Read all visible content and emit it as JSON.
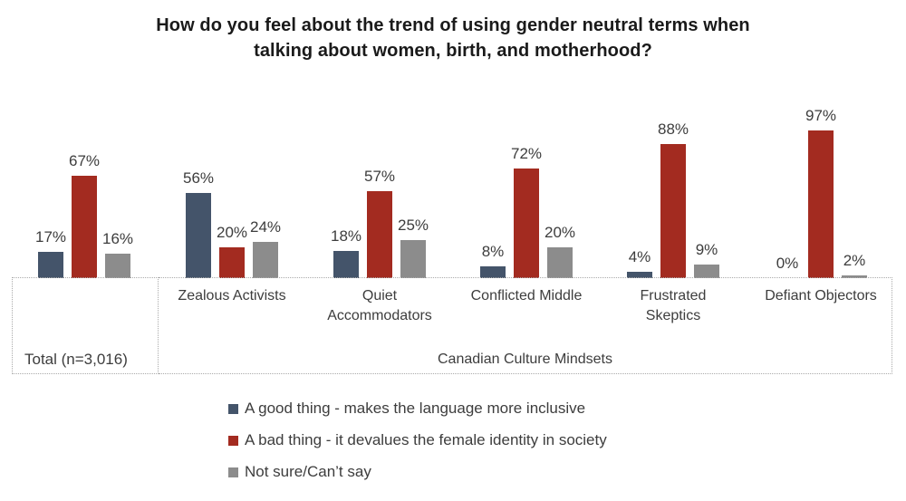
{
  "header": {
    "title_lines": [
      "How do you feel about the trend of using gender neutral terms when",
      "talking about women, birth, and motherhood?"
    ]
  },
  "axis": {
    "total_label": "Total (n=3,016)",
    "mindset_labels": [
      "Zealous Activists",
      "Quiet Accommodators",
      "Conflicted Middle",
      "Frustrated Skeptics",
      "Defiant Objectors"
    ],
    "mindsets_group_label": "Canadian Culture Mindsets"
  },
  "chart_data": {
    "type": "bar",
    "title": "How do you feel about the trend of using gender neutral terms when talking about women, birth, and motherhood?",
    "categories": [
      "Total (n=3,016)",
      "Zealous Activists",
      "Quiet Accommodators",
      "Conflicted Middle",
      "Frustrated Skeptics",
      "Defiant Objectors"
    ],
    "series": [
      {
        "name": "A good thing -  makes the language more inclusive",
        "color": "#44546A",
        "pattern": "solid",
        "values": [
          17,
          56,
          18,
          8,
          4,
          0
        ]
      },
      {
        "name": "A bad thing -  it devalues the female identity in society",
        "color": "#A32B20",
        "pattern": "solid",
        "values": [
          67,
          20,
          57,
          72,
          88,
          97
        ]
      },
      {
        "name": "Not sure/Can’t say",
        "color": "#8C8C8C",
        "pattern": "crosshatch",
        "values": [
          16,
          24,
          25,
          20,
          9,
          2
        ]
      }
    ],
    "value_suffix": "%",
    "data_labels": true,
    "ylim": [
      0,
      100
    ],
    "grid": false,
    "legend_position": "bottom-left"
  }
}
